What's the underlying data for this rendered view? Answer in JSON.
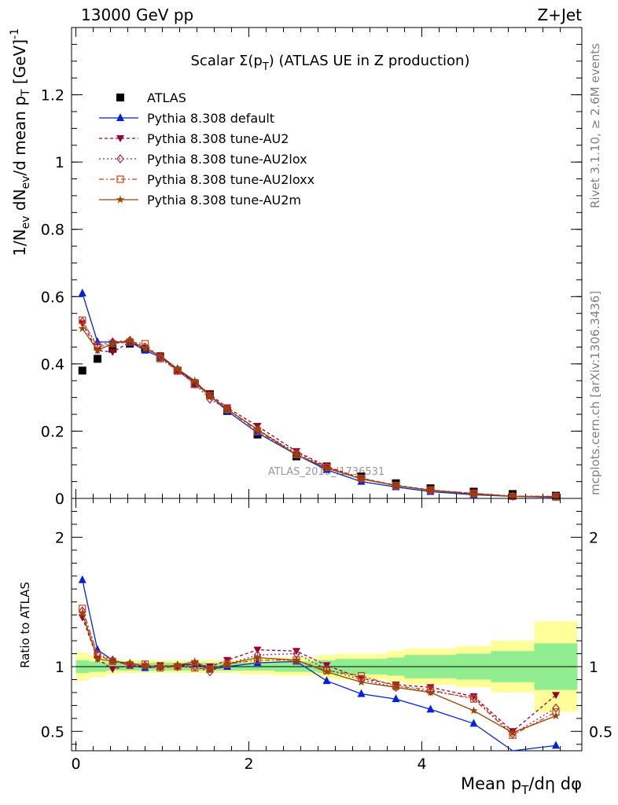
{
  "header": {
    "energy": "13000 GeV pp",
    "process": "Z+Jet",
    "side_version": "Rivet 3.1.10, ≥ 2.6M events",
    "side_ref": "mcplots.cern.ch [arXiv:1306.3436]",
    "watermark": "ATLAS_2019_I1736531"
  },
  "chart_data": [
    {
      "panel": "main",
      "type": "line",
      "title": "Scalar Σ(p_T) (ATLAS UE in Z production)",
      "title_parts": {
        "pre": "Scalar Σ(p",
        "sub": "T",
        "post": ") (ATLAS UE in Z production)"
      },
      "ylabel": "1/N_ev dN_ev/d mean p_T [GeV]^-1",
      "ylim": [
        0,
        1.4
      ],
      "yticks": [
        0,
        0.2,
        0.4,
        0.6,
        0.8,
        1,
        1.2
      ],
      "ytick_labels": [
        "0",
        "0.2",
        "0.4",
        "0.6",
        "0.8",
        "1",
        "1.2"
      ],
      "xlim": [
        -0.05,
        5.85
      ],
      "x": [
        0.075,
        0.25,
        0.425,
        0.625,
        0.8,
        0.975,
        1.175,
        1.375,
        1.55,
        1.75,
        2.1,
        2.55,
        2.9,
        3.3,
        3.7,
        4.1,
        4.6,
        5.05,
        5.55
      ],
      "legend_position": "top-left",
      "series": [
        {
          "name": "ATLAS",
          "color": "#000000",
          "marker": "square",
          "values": [
            0.38,
            0.415,
            0.445,
            0.46,
            0.445,
            0.42,
            0.38,
            0.34,
            0.31,
            0.26,
            0.19,
            0.125,
            0.095,
            0.065,
            0.045,
            0.03,
            0.02,
            0.013,
            0.008
          ]
        },
        {
          "name": "Pythia 8.308 default",
          "color": "#0022dd",
          "marker": "triangle-up",
          "dash": "",
          "values": [
            0.61,
            0.465,
            0.465,
            0.465,
            0.44,
            0.42,
            0.385,
            0.345,
            0.305,
            0.26,
            0.195,
            0.13,
            0.085,
            0.05,
            0.034,
            0.02,
            0.011,
            0.006,
            0.003
          ]
        },
        {
          "name": "Pythia 8.308 tune-AU2",
          "color": "#990033",
          "marker": "triangle-down",
          "dash": "4,3",
          "values": [
            0.52,
            0.44,
            0.435,
            0.465,
            0.445,
            0.425,
            0.38,
            0.345,
            0.31,
            0.27,
            0.215,
            0.14,
            0.095,
            0.06,
            0.039,
            0.025,
            0.015,
            0.0065,
            0.006
          ]
        },
        {
          "name": "Pythia 8.308 tune-AU2lox",
          "color": "#aa2244",
          "marker": "diamond-open",
          "dash": "2,3",
          "values": [
            0.525,
            0.455,
            0.465,
            0.47,
            0.45,
            0.42,
            0.38,
            0.34,
            0.295,
            0.265,
            0.205,
            0.135,
            0.093,
            0.058,
            0.038,
            0.024,
            0.015,
            0.0065,
            0.0055
          ]
        },
        {
          "name": "Pythia 8.308 tune-AU2loxx",
          "color": "#cc4411",
          "marker": "square-open",
          "dash": "6,3,2,3",
          "values": [
            0.53,
            0.45,
            0.46,
            0.465,
            0.46,
            0.415,
            0.38,
            0.34,
            0.305,
            0.265,
            0.2,
            0.13,
            0.092,
            0.06,
            0.038,
            0.025,
            0.015,
            0.006,
            0.005
          ]
        },
        {
          "name": "Pythia 8.308 tune-AU2m",
          "color": "#994400",
          "marker": "star",
          "dash": "",
          "values": [
            0.505,
            0.44,
            0.46,
            0.47,
            0.445,
            0.425,
            0.385,
            0.35,
            0.305,
            0.265,
            0.205,
            0.13,
            0.09,
            0.058,
            0.038,
            0.024,
            0.013,
            0.0063,
            0.005
          ]
        }
      ]
    },
    {
      "panel": "ratio",
      "type": "line",
      "ylabel": "Ratio to ATLAS",
      "xlabel": "Mean p_T/dη dφ",
      "xlabel_parts": {
        "pre": "Mean p",
        "sub": "T",
        "post": "/dη dφ"
      },
      "ylim": [
        0.35,
        2.3
      ],
      "yticks": [
        0.5,
        1,
        2
      ],
      "ytick_labels": [
        "0.5",
        "1",
        "2"
      ],
      "xlim": [
        -0.05,
        5.85
      ],
      "xticks": [
        0,
        2,
        4
      ],
      "xtick_labels": [
        "0",
        "2",
        "4"
      ],
      "x_edges": [
        0,
        0.15,
        0.35,
        0.5,
        0.75,
        0.85,
        1.1,
        1.25,
        1.5,
        1.6,
        1.9,
        2.3,
        2.8,
        3.0,
        3.6,
        3.8,
        4.4,
        4.8,
        5.3,
        5.8
      ],
      "band_stat": [
        0.05,
        0.04,
        0.03,
        0.03,
        0.03,
        0.03,
        0.03,
        0.03,
        0.03,
        0.03,
        0.03,
        0.04,
        0.05,
        0.06,
        0.07,
        0.09,
        0.1,
        0.12,
        0.18
      ],
      "band_total": [
        0.11,
        0.08,
        0.06,
        0.05,
        0.05,
        0.05,
        0.05,
        0.05,
        0.05,
        0.05,
        0.06,
        0.07,
        0.09,
        0.1,
        0.12,
        0.14,
        0.16,
        0.2,
        0.35
      ],
      "band_stat_color": "#90ee90",
      "band_total_color": "#ffff99",
      "x": [
        0.075,
        0.25,
        0.425,
        0.625,
        0.8,
        0.975,
        1.175,
        1.375,
        1.55,
        1.75,
        2.1,
        2.55,
        2.9,
        3.3,
        3.7,
        4.1,
        4.6,
        5.05,
        5.55
      ],
      "series": [
        {
          "name": "Pythia 8.308 default",
          "color": "#0022dd",
          "marker": "triangle-up",
          "dash": "",
          "values": [
            1.67,
            1.13,
            1.05,
            1.01,
            0.99,
            1.0,
            1.01,
            1.02,
            0.98,
            1.0,
            1.03,
            1.04,
            0.89,
            0.79,
            0.75,
            0.67,
            0.56,
            0.28,
            0.39
          ]
        },
        {
          "name": "Pythia 8.308 tune-AU2",
          "color": "#990033",
          "marker": "triangle-down",
          "dash": "4,3",
          "values": [
            1.38,
            1.06,
            0.98,
            1.01,
            1.0,
            1.01,
            1.0,
            1.02,
            1.0,
            1.05,
            1.13,
            1.12,
            1.01,
            0.91,
            0.86,
            0.84,
            0.77,
            0.5,
            0.78
          ]
        },
        {
          "name": "Pythia 8.308 tune-AU2lox",
          "color": "#aa2244",
          "marker": "diamond-open",
          "dash": "2,3",
          "values": [
            1.43,
            1.1,
            1.05,
            1.02,
            1.01,
            1.0,
            1.0,
            1.0,
            0.96,
            1.02,
            1.09,
            1.1,
            0.98,
            0.9,
            0.84,
            0.81,
            0.76,
            0.48,
            0.68
          ]
        },
        {
          "name": "Pythia 8.308 tune-AU2loxx",
          "color": "#cc4411",
          "marker": "square-open",
          "dash": "6,3,2,3",
          "values": [
            1.45,
            1.09,
            1.04,
            1.01,
            1.02,
            0.99,
            1.0,
            0.99,
            0.98,
            1.02,
            1.05,
            1.05,
            0.97,
            0.93,
            0.85,
            0.82,
            0.75,
            0.47,
            0.65
          ]
        },
        {
          "name": "Pythia 8.308 tune-AU2m",
          "color": "#994400",
          "marker": "star",
          "dash": "",
          "values": [
            1.41,
            1.06,
            1.04,
            1.03,
            1.0,
            1.0,
            1.01,
            1.04,
            0.98,
            1.02,
            1.07,
            1.05,
            0.96,
            0.88,
            0.84,
            0.8,
            0.66,
            0.49,
            0.62
          ]
        }
      ]
    }
  ]
}
